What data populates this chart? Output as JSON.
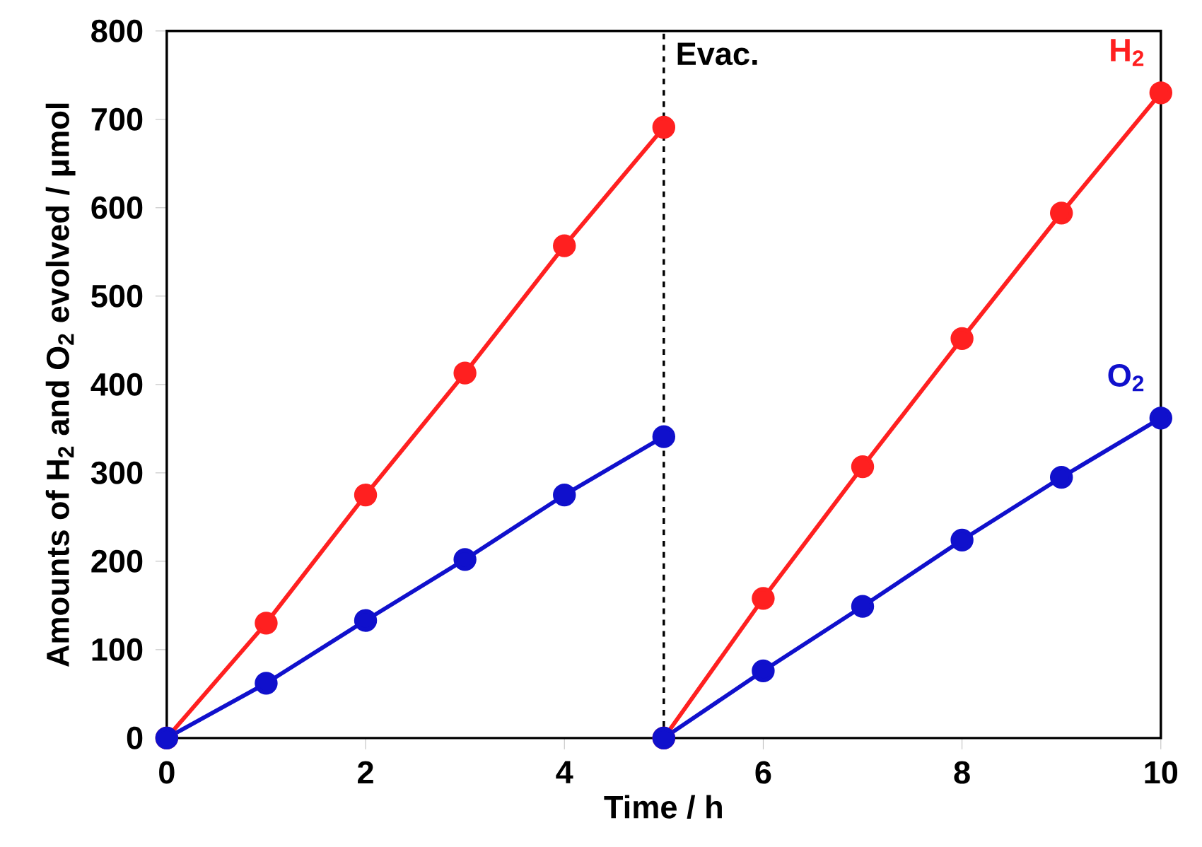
{
  "chart_data": {
    "type": "line",
    "xlabel": "Time / h",
    "ylabel": "Amounts of H$_{2}$ and O$_{2}$ evolved / μmol",
    "series": [
      {
        "color": "#ff2020",
        "x": [
          0,
          1,
          2,
          3,
          4,
          5
        ],
        "values": [
          0,
          130,
          275,
          413,
          557,
          691
        ]
      },
      {
        "color": "#1010cc",
        "x": [
          0,
          1,
          2,
          3,
          4,
          5
        ],
        "values": [
          0,
          62,
          133,
          202,
          275,
          341
        ]
      },
      {
        "name": "H$_{2}$",
        "color": "#ff2020",
        "x": [
          5,
          6,
          7,
          8,
          9,
          10
        ],
        "values": [
          0,
          158,
          307,
          452,
          594,
          730
        ]
      },
      {
        "name": "O$_{2}$",
        "color": "#1010cc",
        "x": [
          5,
          6,
          7,
          8,
          9,
          10
        ],
        "values": [
          0,
          76,
          149,
          224,
          295,
          362
        ]
      }
    ],
    "xlim": [
      0,
      10
    ],
    "ylim": [
      0,
      800
    ],
    "xticks": [
      0,
      2,
      4,
      6,
      8,
      10
    ],
    "yticks": [
      0,
      100,
      200,
      300,
      400,
      500,
      600,
      700,
      800
    ],
    "marker": "circle",
    "line_style": "solid",
    "grid": false,
    "ref_lines": [
      {
        "axis": "x",
        "value": 5,
        "label": "Evac.",
        "color": "#000000",
        "line_style": "dashed"
      }
    ]
  }
}
